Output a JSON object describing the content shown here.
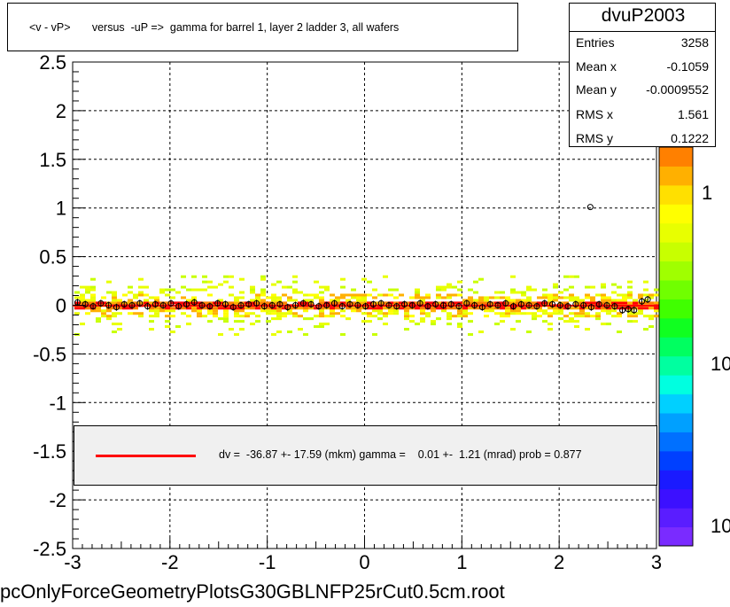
{
  "title": "<v - vP>       versus  -uP =>  gamma for barrel 1, layer 2 ladder 3, all wafers",
  "stats": {
    "name": "dvuP2003",
    "rows": [
      {
        "label": "Entries",
        "value": "3258"
      },
      {
        "label": "Mean x",
        "value": "-0.1059"
      },
      {
        "label": "Mean y",
        "value": "-0.0009552"
      },
      {
        "label": "RMS x",
        "value": "1.561"
      },
      {
        "label": "RMS y",
        "value": "0.1222"
      }
    ]
  },
  "fit_legend": {
    "text": "dv =  -36.87 +- 17.59 (mkm) gamma =    0.01 +-  1.21 (mrad) prob = 0.877",
    "line_color": "#ff0000"
  },
  "file_caption": "pcOnlyForceGeometryPlotsG30GBLNFP25rCut0.5cm.root",
  "color_scale": {
    "tick_labels": [
      "1",
      "10",
      "10"
    ],
    "colors": [
      "#7a2bff",
      "#5a1dff",
      "#3c10ff",
      "#1a1aff",
      "#0040ff",
      "#0070ff",
      "#00a0ff",
      "#00d0ff",
      "#00ffe0",
      "#00ffa0",
      "#00ff60",
      "#10ff20",
      "#40ff00",
      "#70ff00",
      "#a0ff00",
      "#c8ff00",
      "#e8ff00",
      "#ffff00",
      "#ffe000",
      "#ffb000",
      "#ff8000"
    ]
  },
  "chart_data": {
    "type": "heatmap",
    "title": "<v - vP>       versus  -uP =>  gamma for barrel 1, layer 2 ladder 3, all wafers",
    "xlim": [
      -3,
      3
    ],
    "ylim": [
      -2.5,
      2.5
    ],
    "x_ticks": [
      "-3",
      "-2",
      "-1",
      "0",
      "1",
      "2",
      "3"
    ],
    "y_ticks": [
      "-2.5",
      "-2",
      "-1.5",
      "-1",
      "-0.5",
      "0",
      "0.5",
      "1",
      "1.5",
      "2",
      "2.5"
    ],
    "grid": true,
    "band": {
      "center": 0.0,
      "core_halfwidth": 0.05,
      "outer_halfwidth": 0.3
    },
    "profile_points": {
      "x": [
        -2.95,
        -2.87,
        -2.79,
        -2.71,
        -2.63,
        -2.55,
        -2.47,
        -2.39,
        -2.31,
        -2.23,
        -2.15,
        -2.07,
        -1.99,
        -1.91,
        -1.83,
        -1.75,
        -1.67,
        -1.59,
        -1.51,
        -1.43,
        -1.35,
        -1.27,
        -1.19,
        -1.11,
        -1.03,
        -0.95,
        -0.87,
        -0.79,
        -0.71,
        -0.63,
        -0.55,
        -0.47,
        -0.39,
        -0.31,
        -0.23,
        -0.15,
        -0.07,
        0.01,
        0.09,
        0.17,
        0.25,
        0.33,
        0.41,
        0.49,
        0.57,
        0.65,
        0.73,
        0.81,
        0.89,
        0.97,
        1.05,
        1.13,
        1.21,
        1.29,
        1.37,
        1.45,
        1.53,
        1.61,
        1.69,
        1.77,
        1.85,
        1.93,
        2.01,
        2.09,
        2.17,
        2.25,
        2.33,
        2.41,
        2.49,
        2.57,
        2.65,
        2.71,
        2.77,
        2.85,
        2.91
      ],
      "y": [
        0.03,
        0.01,
        -0.01,
        0.02,
        0.0,
        -0.02,
        0.01,
        0.0,
        0.02,
        -0.01,
        0.01,
        0.0,
        0.02,
        -0.01,
        0.01,
        0.03,
        0.0,
        -0.01,
        0.02,
        0.01,
        -0.02,
        0.0,
        0.01,
        0.02,
        -0.01,
        0.0,
        0.01,
        -0.02,
        0.0,
        0.02,
        0.01,
        -0.01,
        0.0,
        0.02,
        -0.01,
        0.01,
        0.0,
        -0.01,
        0.01,
        0.02,
        0.0,
        -0.01,
        0.01,
        0.0,
        0.02,
        -0.01,
        0.01,
        0.0,
        0.01,
        -0.01,
        0.02,
        0.0,
        -0.02,
        0.01,
        0.0,
        0.02,
        -0.01,
        0.01,
        0.0,
        -0.01,
        0.02,
        0.01,
        0.0,
        -0.01,
        0.01,
        0.0,
        -0.02,
        0.01,
        0.0,
        -0.01,
        -0.05,
        -0.04,
        -0.05,
        0.04,
        0.06
      ]
    },
    "outlier": {
      "x": 2.32,
      "y": 1.01
    },
    "fit_line": {
      "y": -0.003
    }
  }
}
